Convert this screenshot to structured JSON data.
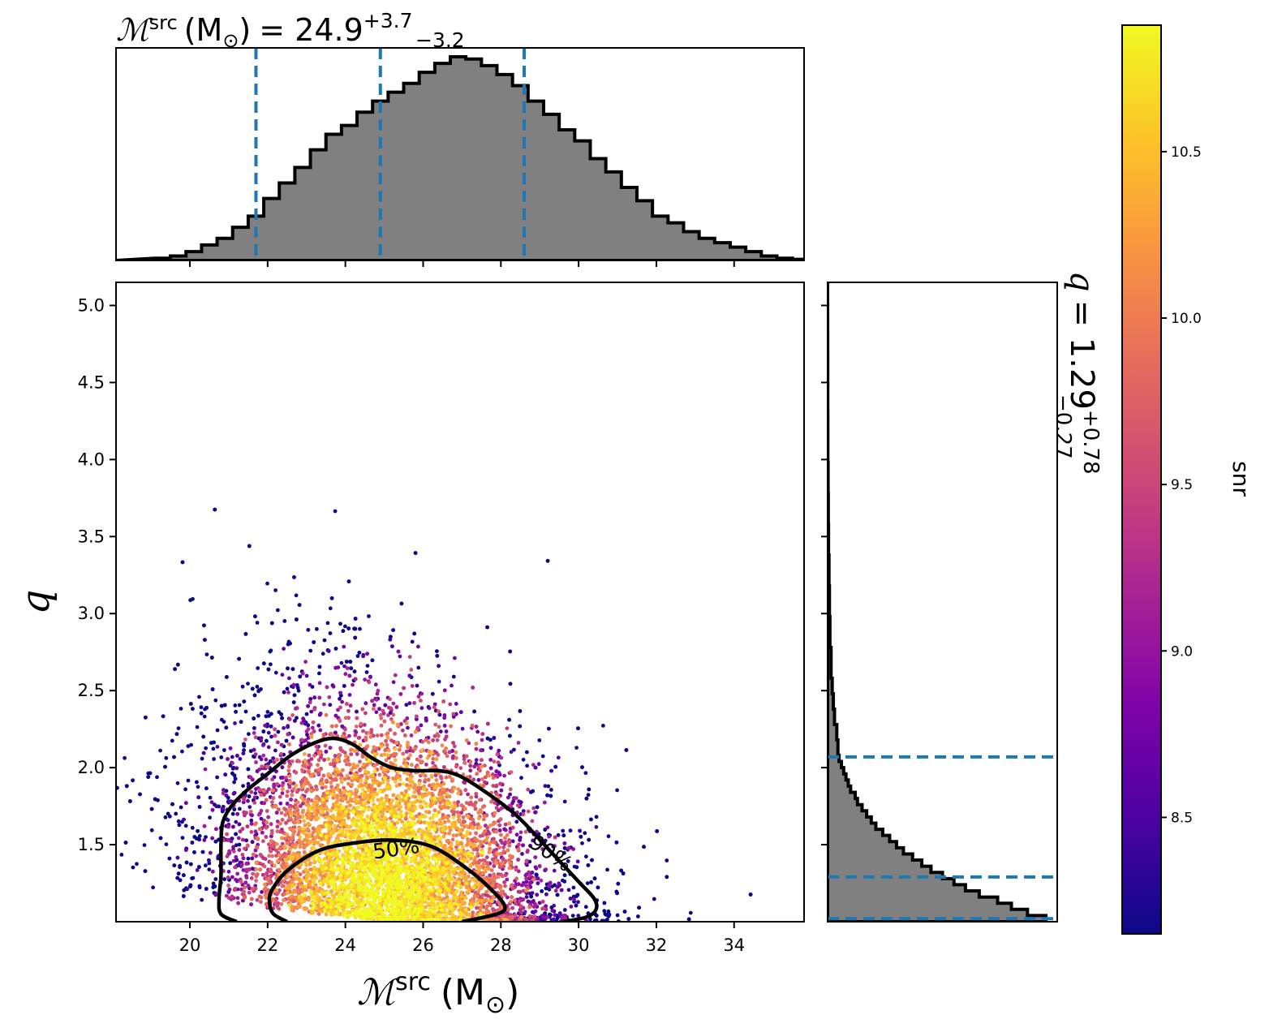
{
  "chart_data": {
    "type": "scatter",
    "title": "",
    "top_title": {
      "symbol": "ℳ",
      "sup": "src",
      "unit": "(M",
      "unit_sub": "⊙",
      "unit_close": ")",
      "eq": "= 24.9",
      "plus": "+3.7",
      "minus": "−3.2"
    },
    "side_title": {
      "symbol": "q",
      "eq": "= 1.29",
      "plus": "+0.78",
      "minus": "−0.27"
    },
    "xlabel": {
      "symbol": "ℳ",
      "sup": "src",
      "unit": "(M",
      "unit_sub": "⊙",
      "unit_close": ")"
    },
    "ylabel": "q",
    "colorbar_label": "snr",
    "xlim": [
      18.1,
      35.8
    ],
    "ylim": [
      1.0,
      5.15
    ],
    "xticks": [
      "20",
      "22",
      "24",
      "26",
      "28",
      "30",
      "32",
      "34"
    ],
    "xtick_values": [
      20,
      22,
      24,
      26,
      28,
      30,
      32,
      34
    ],
    "yticks": [
      "1.5",
      "2.0",
      "2.5",
      "3.0",
      "3.5",
      "4.0",
      "4.5",
      "5.0"
    ],
    "ytick_values": [
      1.5,
      2.0,
      2.5,
      3.0,
      3.5,
      4.0,
      4.5,
      5.0
    ],
    "colorbar_range": [
      8.15,
      10.88
    ],
    "colorbar_ticks": [
      "8.5",
      "9.0",
      "9.5",
      "10.0",
      "10.5"
    ],
    "colorbar_tick_values": [
      8.5,
      9.0,
      9.5,
      10.0,
      10.5
    ],
    "colormap": "plasma",
    "mchirp_quantiles": [
      21.7,
      24.9,
      28.6
    ],
    "q_quantiles": [
      1.02,
      1.29,
      2.07
    ],
    "contours": [
      {
        "label": "50%",
        "points": [
          [
            22.5,
            1.0
          ],
          [
            22.15,
            1.05
          ],
          [
            22.05,
            1.12
          ],
          [
            22.1,
            1.2
          ],
          [
            22.5,
            1.33
          ],
          [
            23.3,
            1.46
          ],
          [
            24.2,
            1.51
          ],
          [
            25.2,
            1.53
          ],
          [
            26.2,
            1.49
          ],
          [
            27.1,
            1.35
          ],
          [
            27.75,
            1.21
          ],
          [
            28.1,
            1.1
          ],
          [
            27.9,
            1.05
          ],
          [
            27.0,
            1.0
          ]
        ]
      },
      {
        "label": "90%",
        "points": [
          [
            21.2,
            1.0
          ],
          [
            20.8,
            1.05
          ],
          [
            20.75,
            1.15
          ],
          [
            20.8,
            1.3
          ],
          [
            20.8,
            1.5
          ],
          [
            20.85,
            1.65
          ],
          [
            21.1,
            1.76
          ],
          [
            21.5,
            1.86
          ],
          [
            22.0,
            1.96
          ],
          [
            22.6,
            2.08
          ],
          [
            23.2,
            2.16
          ],
          [
            23.7,
            2.19
          ],
          [
            24.2,
            2.15
          ],
          [
            24.7,
            2.06
          ],
          [
            25.2,
            2.0
          ],
          [
            25.8,
            1.98
          ],
          [
            26.4,
            1.98
          ],
          [
            26.9,
            1.95
          ],
          [
            27.5,
            1.86
          ],
          [
            28.4,
            1.69
          ],
          [
            29.3,
            1.45
          ],
          [
            30.0,
            1.26
          ],
          [
            30.4,
            1.15
          ],
          [
            30.45,
            1.08
          ],
          [
            30.2,
            1.03
          ],
          [
            29.6,
            1.0
          ]
        ]
      }
    ],
    "top_hist": {
      "x": [
        19.3,
        19.7,
        20.1,
        20.5,
        20.9,
        21.3,
        21.7,
        22.1,
        22.5,
        22.9,
        23.3,
        23.7,
        24.1,
        24.5,
        24.9,
        25.3,
        25.7,
        26.1,
        26.5,
        26.9,
        27.3,
        27.7,
        28.1,
        28.5,
        28.9,
        29.3,
        29.7,
        30.1,
        30.5,
        30.9,
        31.3,
        31.7,
        32.1,
        32.5,
        32.9,
        33.3,
        33.7,
        34.1,
        34.5,
        34.9,
        35.3,
        35.7
      ],
      "density": [
        0.01,
        0.02,
        0.04,
        0.07,
        0.1,
        0.15,
        0.2,
        0.28,
        0.35,
        0.42,
        0.5,
        0.57,
        0.61,
        0.67,
        0.72,
        0.76,
        0.8,
        0.85,
        0.89,
        0.92,
        0.91,
        0.88,
        0.84,
        0.79,
        0.72,
        0.66,
        0.59,
        0.54,
        0.46,
        0.4,
        0.33,
        0.27,
        0.2,
        0.17,
        0.13,
        0.1,
        0.08,
        0.06,
        0.04,
        0.02,
        0.01,
        0.005
      ]
    },
    "side_hist": {
      "q": [
        1.02,
        1.06,
        1.1,
        1.14,
        1.18,
        1.22,
        1.26,
        1.3,
        1.34,
        1.38,
        1.42,
        1.46,
        1.5,
        1.54,
        1.58,
        1.62,
        1.66,
        1.7,
        1.74,
        1.78,
        1.82,
        1.86,
        1.9,
        1.94,
        1.98,
        2.02,
        2.06,
        2.1,
        2.2,
        2.3,
        2.4,
        2.5,
        2.6,
        2.8,
        3.0,
        3.2,
        3.4,
        3.6,
        3.8,
        4.0
      ],
      "density": [
        0.95,
        0.87,
        0.8,
        0.74,
        0.66,
        0.6,
        0.55,
        0.5,
        0.45,
        0.41,
        0.37,
        0.33,
        0.3,
        0.27,
        0.24,
        0.21,
        0.19,
        0.17,
        0.15,
        0.13,
        0.12,
        0.1,
        0.09,
        0.08,
        0.07,
        0.06,
        0.05,
        0.045,
        0.04,
        0.03,
        0.025,
        0.02,
        0.015,
        0.01,
        0.008,
        0.006,
        0.004,
        0.003,
        0.002,
        0.001
      ]
    },
    "scatter_model": {
      "center_x": 25.0,
      "sigma_x": 2.2,
      "center_q": 1.0,
      "scale_q": 0.55,
      "n_points": 9000
    }
  }
}
